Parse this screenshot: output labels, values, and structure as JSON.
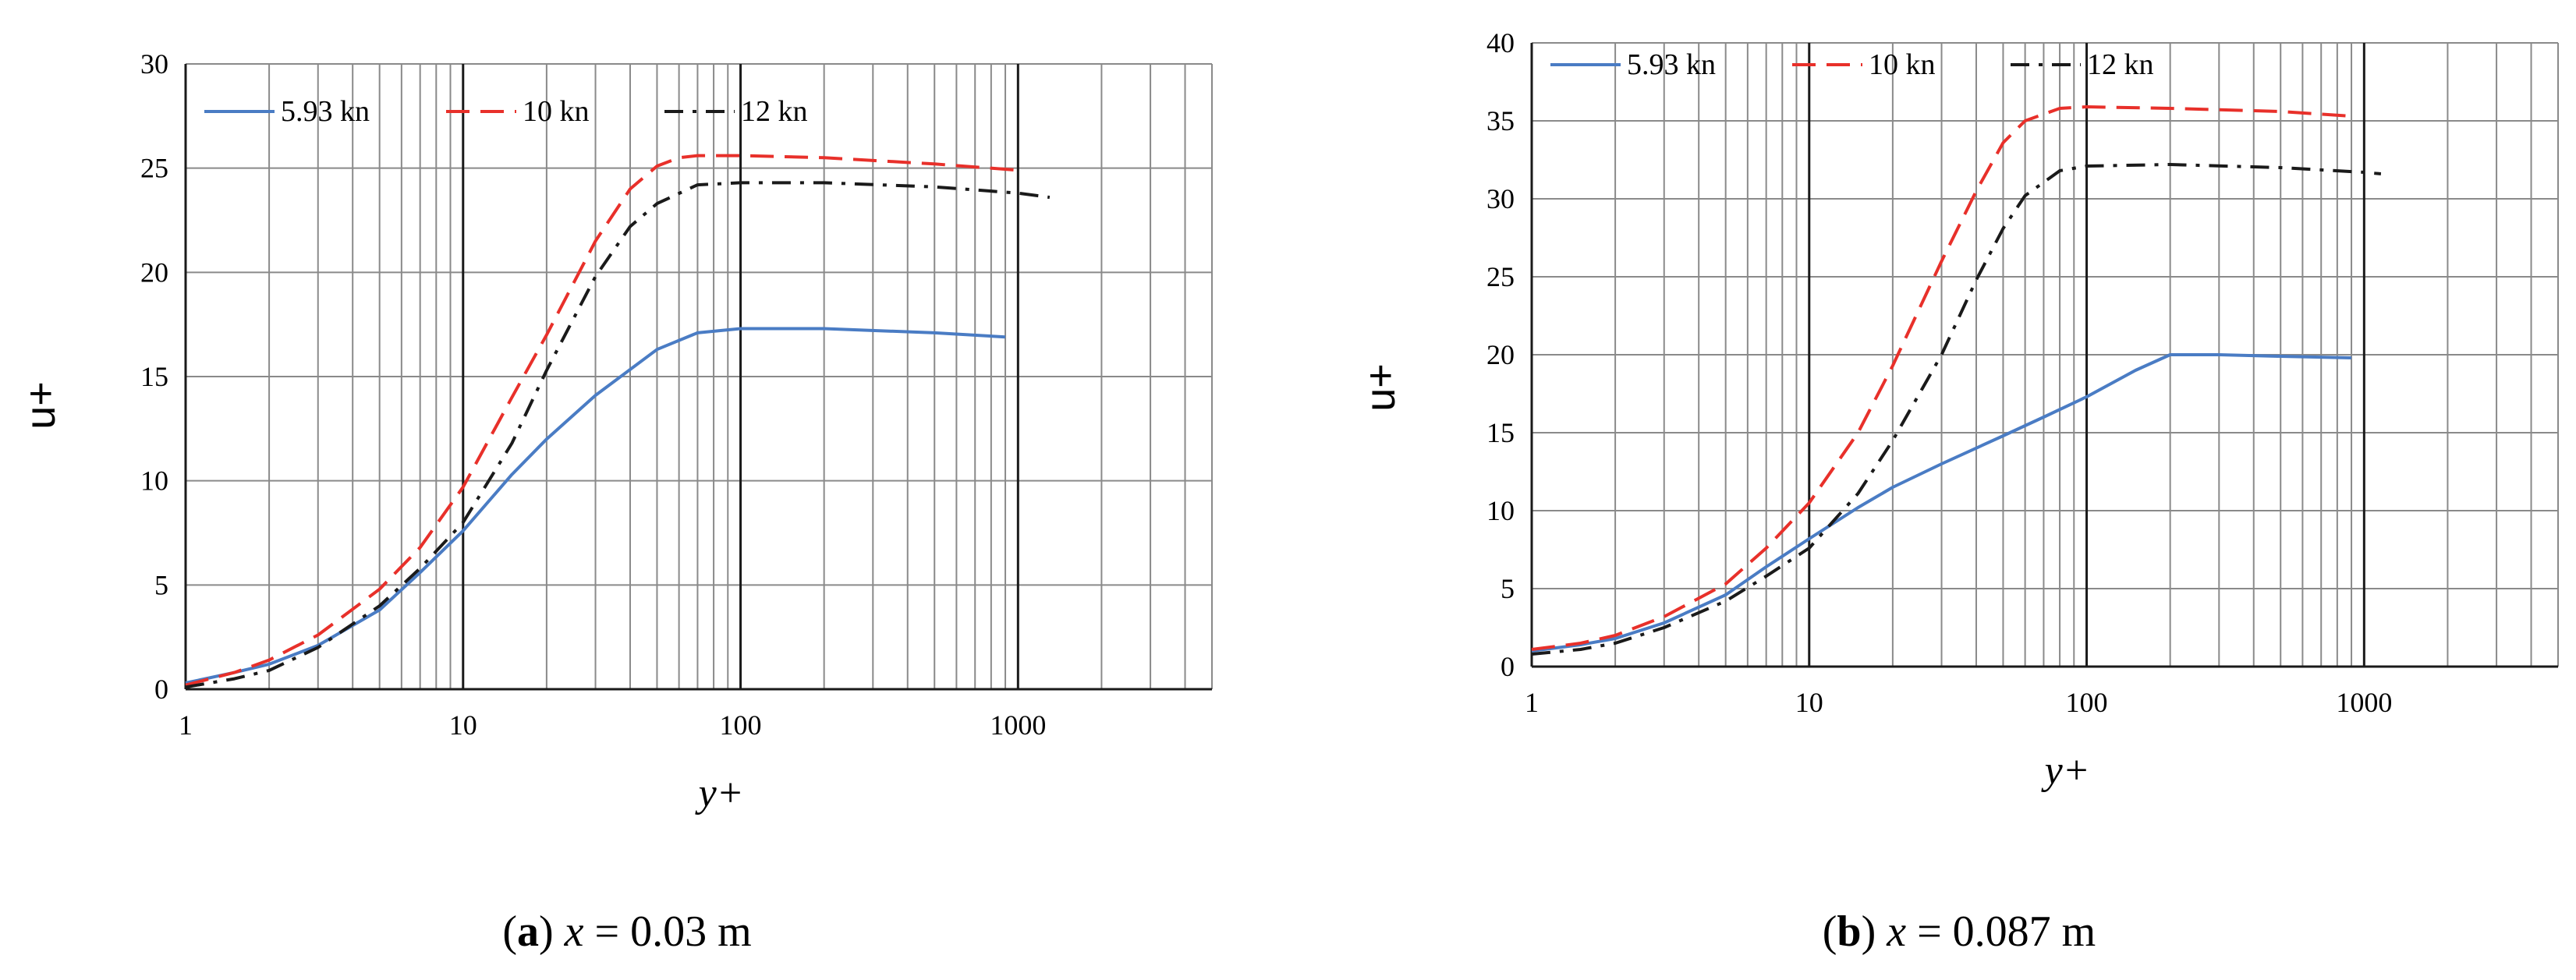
{
  "chart_data": [
    {
      "type": "line",
      "caption_letter": "a",
      "caption_expr": "x",
      "caption_value": " = 0.03 m",
      "xlabel": "y+",
      "ylabel": "u+",
      "xscale": "log",
      "xlim": [
        1,
        5000
      ],
      "ylim": [
        0,
        30
      ],
      "xticks": [
        1,
        10,
        100,
        1000
      ],
      "xtick_labels": [
        "1",
        "10",
        "100",
        "1000"
      ],
      "yticks": [
        0,
        5,
        10,
        15,
        20,
        25,
        30
      ],
      "ytick_labels": [
        "0",
        "5",
        "10",
        "15",
        "20",
        "25",
        "30"
      ],
      "grid": true,
      "legend_position": "top-left",
      "series": [
        {
          "name": "5.93 kn",
          "color": "#4A7CC4",
          "dash": "solid",
          "x": [
            1,
            1.5,
            2,
            3,
            5,
            7,
            10,
            15,
            20,
            30,
            50,
            70,
            100,
            200,
            500,
            900
          ],
          "y": [
            0.3,
            0.8,
            1.2,
            2.1,
            3.8,
            5.6,
            7.6,
            10.3,
            12.0,
            14.1,
            16.3,
            17.1,
            17.3,
            17.3,
            17.1,
            16.9
          ]
        },
        {
          "name": "10 kn",
          "color": "#E8302A",
          "dash": "dashed",
          "x": [
            1,
            1.5,
            2,
            3,
            5,
            7,
            10,
            15,
            20,
            30,
            40,
            50,
            60,
            70,
            100,
            200,
            500,
            1000
          ],
          "y": [
            0.2,
            0.8,
            1.4,
            2.6,
            4.8,
            6.8,
            9.7,
            14.0,
            17.0,
            21.5,
            24.0,
            25.1,
            25.5,
            25.6,
            25.6,
            25.5,
            25.2,
            24.9
          ]
        },
        {
          "name": "12 kn",
          "color": "#1a1a1a",
          "dash": "dashdot",
          "x": [
            1,
            1.5,
            2,
            3,
            5,
            7,
            10,
            15,
            20,
            30,
            40,
            50,
            70,
            100,
            200,
            500,
            1000,
            1300
          ],
          "y": [
            0.1,
            0.5,
            0.9,
            2.0,
            4.0,
            5.8,
            8.0,
            11.8,
            15.3,
            19.8,
            22.2,
            23.3,
            24.2,
            24.3,
            24.3,
            24.1,
            23.8,
            23.6
          ]
        }
      ]
    },
    {
      "type": "line",
      "caption_letter": "b",
      "caption_expr": "x",
      "caption_value": " = 0.087 m",
      "xlabel": "y+",
      "ylabel": "u+",
      "xscale": "log",
      "xlim": [
        1,
        5000
      ],
      "ylim": [
        0,
        40
      ],
      "xticks": [
        1,
        10,
        100,
        1000
      ],
      "xtick_labels": [
        "1",
        "10",
        "100",
        "1000"
      ],
      "yticks": [
        0,
        5,
        10,
        15,
        20,
        25,
        30,
        35,
        40
      ],
      "ytick_labels": [
        "0",
        "5",
        "10",
        "15",
        "20",
        "25",
        "30",
        "35",
        "40"
      ],
      "grid": true,
      "legend_position": "top",
      "series": [
        {
          "name": "5.93 kn",
          "color": "#4A7CC4",
          "dash": "solid",
          "x": [
            1,
            1.5,
            2,
            3,
            5,
            7,
            10,
            15,
            20,
            30,
            50,
            70,
            100,
            150,
            200,
            300,
            500,
            900
          ],
          "y": [
            1.0,
            1.4,
            1.8,
            2.8,
            4.6,
            6.4,
            8.2,
            10.2,
            11.5,
            13.0,
            14.8,
            16.0,
            17.3,
            19.0,
            20.0,
            20.0,
            19.9,
            19.8
          ]
        },
        {
          "name": "10 kn",
          "color": "#E8302A",
          "dash": "dashed",
          "x": [
            1,
            1.5,
            2,
            3,
            5,
            7,
            10,
            15,
            20,
            30,
            40,
            50,
            60,
            80,
            100,
            200,
            500,
            900
          ],
          "y": [
            1.1,
            1.5,
            2.0,
            3.2,
            5.3,
            7.6,
            10.5,
            15.0,
            19.3,
            26.0,
            30.5,
            33.6,
            35.0,
            35.8,
            35.9,
            35.8,
            35.6,
            35.3
          ]
        },
        {
          "name": "12 kn",
          "color": "#1a1a1a",
          "dash": "dashdot",
          "x": [
            1,
            1.5,
            2,
            3,
            5,
            7,
            10,
            15,
            20,
            30,
            40,
            50,
            60,
            80,
            100,
            200,
            500,
            1000,
            1150
          ],
          "y": [
            0.8,
            1.1,
            1.5,
            2.5,
            4.2,
            5.8,
            7.6,
            11.1,
            14.5,
            20.0,
            24.8,
            28.1,
            30.2,
            31.8,
            32.1,
            32.2,
            32.0,
            31.7,
            31.6
          ]
        }
      ]
    }
  ]
}
